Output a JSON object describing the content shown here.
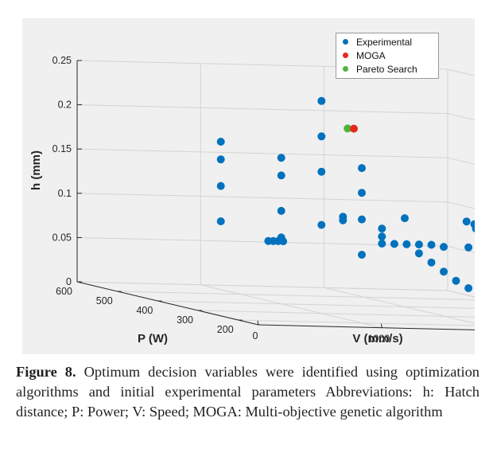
{
  "chart_data": {
    "type": "scatter",
    "xlabel": "V (mm/s)",
    "ylabel": "P (W)",
    "zlabel": "h (mm)",
    "xlim": [
      0,
      3000
    ],
    "ylim": [
      150,
      600
    ],
    "zlim": [
      0,
      0.25
    ],
    "x_ticks": [
      "0",
      "1000",
      "2000",
      "3000"
    ],
    "y_ticks": [
      "200",
      "300",
      "400",
      "500",
      "600"
    ],
    "z_ticks": [
      "0",
      "0.05",
      "0.1",
      "0.15",
      "0.2",
      "0.25"
    ],
    "grid": true,
    "legend_position": "top-right",
    "colors": {
      "experimental": "#0072bd",
      "moga": "#e8281d",
      "pareto": "#4fb33b"
    },
    "series": [
      {
        "name": "Experimental",
        "points": [
          [
            1000,
            550,
            0.167
          ],
          [
            1000,
            550,
            0.147
          ],
          [
            1000,
            550,
            0.117
          ],
          [
            1000,
            550,
            0.077
          ],
          [
            3000,
            450,
            0.075
          ],
          [
            3000,
            450,
            0.02
          ],
          [
            1000,
            400,
            0.165
          ],
          [
            1000,
            400,
            0.145
          ],
          [
            1000,
            400,
            0.105
          ],
          [
            1000,
            400,
            0.075
          ],
          [
            1500,
            400,
            0.1
          ],
          [
            1500,
            400,
            0.096
          ],
          [
            2000,
            400,
            0.1
          ],
          [
            2500,
            400,
            0.098
          ],
          [
            2400,
            350,
            0.1
          ],
          [
            2250,
            300,
            0.1
          ],
          [
            2400,
            250,
            0.1
          ],
          [
            1000,
            300,
            0.24
          ],
          [
            1000,
            300,
            0.2
          ],
          [
            1000,
            300,
            0.16
          ],
          [
            1000,
            300,
            0.1
          ],
          [
            1000,
            200,
            0.175
          ],
          [
            1000,
            200,
            0.147
          ],
          [
            1000,
            200,
            0.117
          ],
          [
            1000,
            200,
            0.077
          ],
          [
            1000,
            150,
            0.112
          ],
          [
            1000,
            150,
            0.103
          ],
          [
            1000,
            150,
            0.095
          ],
          [
            1100,
            150,
            0.095
          ],
          [
            1200,
            150,
            0.095
          ],
          [
            1300,
            150,
            0.095
          ],
          [
            1400,
            150,
            0.095
          ],
          [
            1500,
            150,
            0.093
          ],
          [
            1700,
            150,
            0.093
          ],
          [
            1300,
            150,
            0.085
          ],
          [
            1400,
            150,
            0.075
          ],
          [
            1500,
            150,
            0.065
          ],
          [
            1600,
            150,
            0.055
          ],
          [
            1700,
            150,
            0.047
          ],
          [
            200,
            150,
            0.095
          ],
          [
            160,
            150,
            0.095
          ],
          [
            120,
            150,
            0.095
          ],
          [
            80,
            150,
            0.095
          ]
        ]
      },
      {
        "name": "MOGA",
        "points": [
          [
            1180,
            275,
            0.212
          ]
        ]
      },
      {
        "name": "Pareto Search",
        "points": [
          [
            1130,
            275,
            0.212
          ]
        ]
      }
    ]
  },
  "caption": {
    "label": "Figure 8.",
    "text": " Optimum decision variables were identified using optimization algorithms and initial experimental parameters Abbreviations: h: Hatch distance; P: Power; V: Speed; MOGA: Multi-objective genetic algorithm"
  }
}
